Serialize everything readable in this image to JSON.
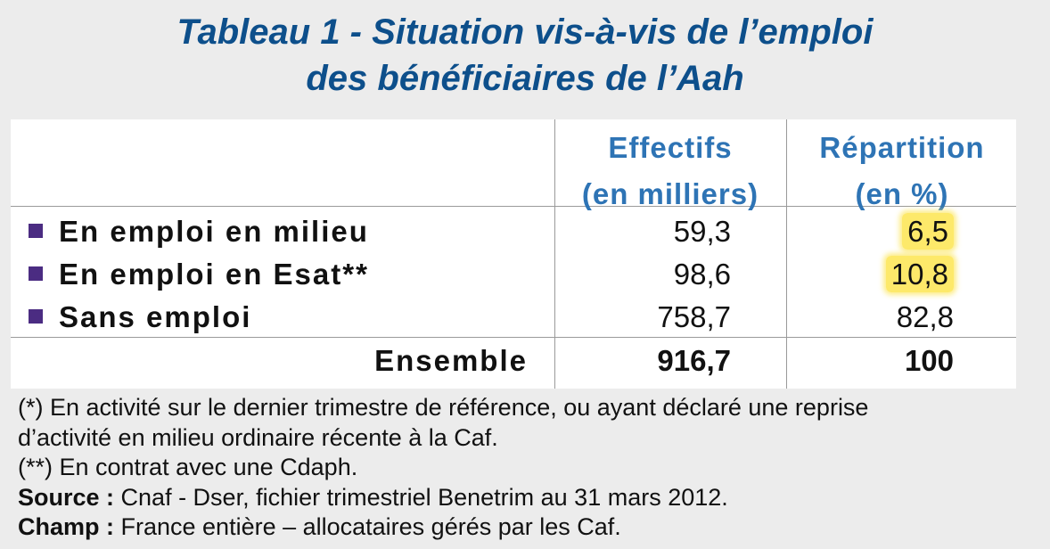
{
  "title": {
    "line1": "Tableau 1 - Situation vis-à-vis de l’emploi",
    "line2": "des bénéficiaires de l’Aah"
  },
  "table": {
    "headers": {
      "effectifs_line1": "Effectifs",
      "effectifs_line2": "(en milliers)",
      "repartition_line1": "Répartition",
      "repartition_line2": "(en %)"
    },
    "rows": [
      {
        "label": "En emploi en milieu",
        "effectifs": "59,3",
        "repartition": "6,5",
        "highlighted": true
      },
      {
        "label": "En emploi en Esat**",
        "effectifs": "98,6",
        "repartition": "10,8",
        "highlighted": true
      },
      {
        "label": "Sans emploi",
        "effectifs": "758,7",
        "repartition": "82,8",
        "highlighted": false
      }
    ],
    "total": {
      "label": "Ensemble",
      "effectifs": "916,7",
      "repartition": "100"
    },
    "colors": {
      "header": "#2e74b5",
      "bullet": "#4b2c82",
      "highlight": "#fde96a",
      "title": "#0d4f8b"
    }
  },
  "notes": {
    "note1": "(*) En activité sur le dernier trimestre de référence, ou ayant déclaré une reprise",
    "note1b": "d’activité en milieu ordinaire récente à la Caf.",
    "note2": "(**) En contrat avec une Cdaph.",
    "source_label": "Source :",
    "source_text": " Cnaf - Dser, fichier trimestriel Benetrim au 31 mars 2012.",
    "champ_label": "Champ :",
    "champ_text": " France entière – allocataires gérés par les Caf."
  }
}
